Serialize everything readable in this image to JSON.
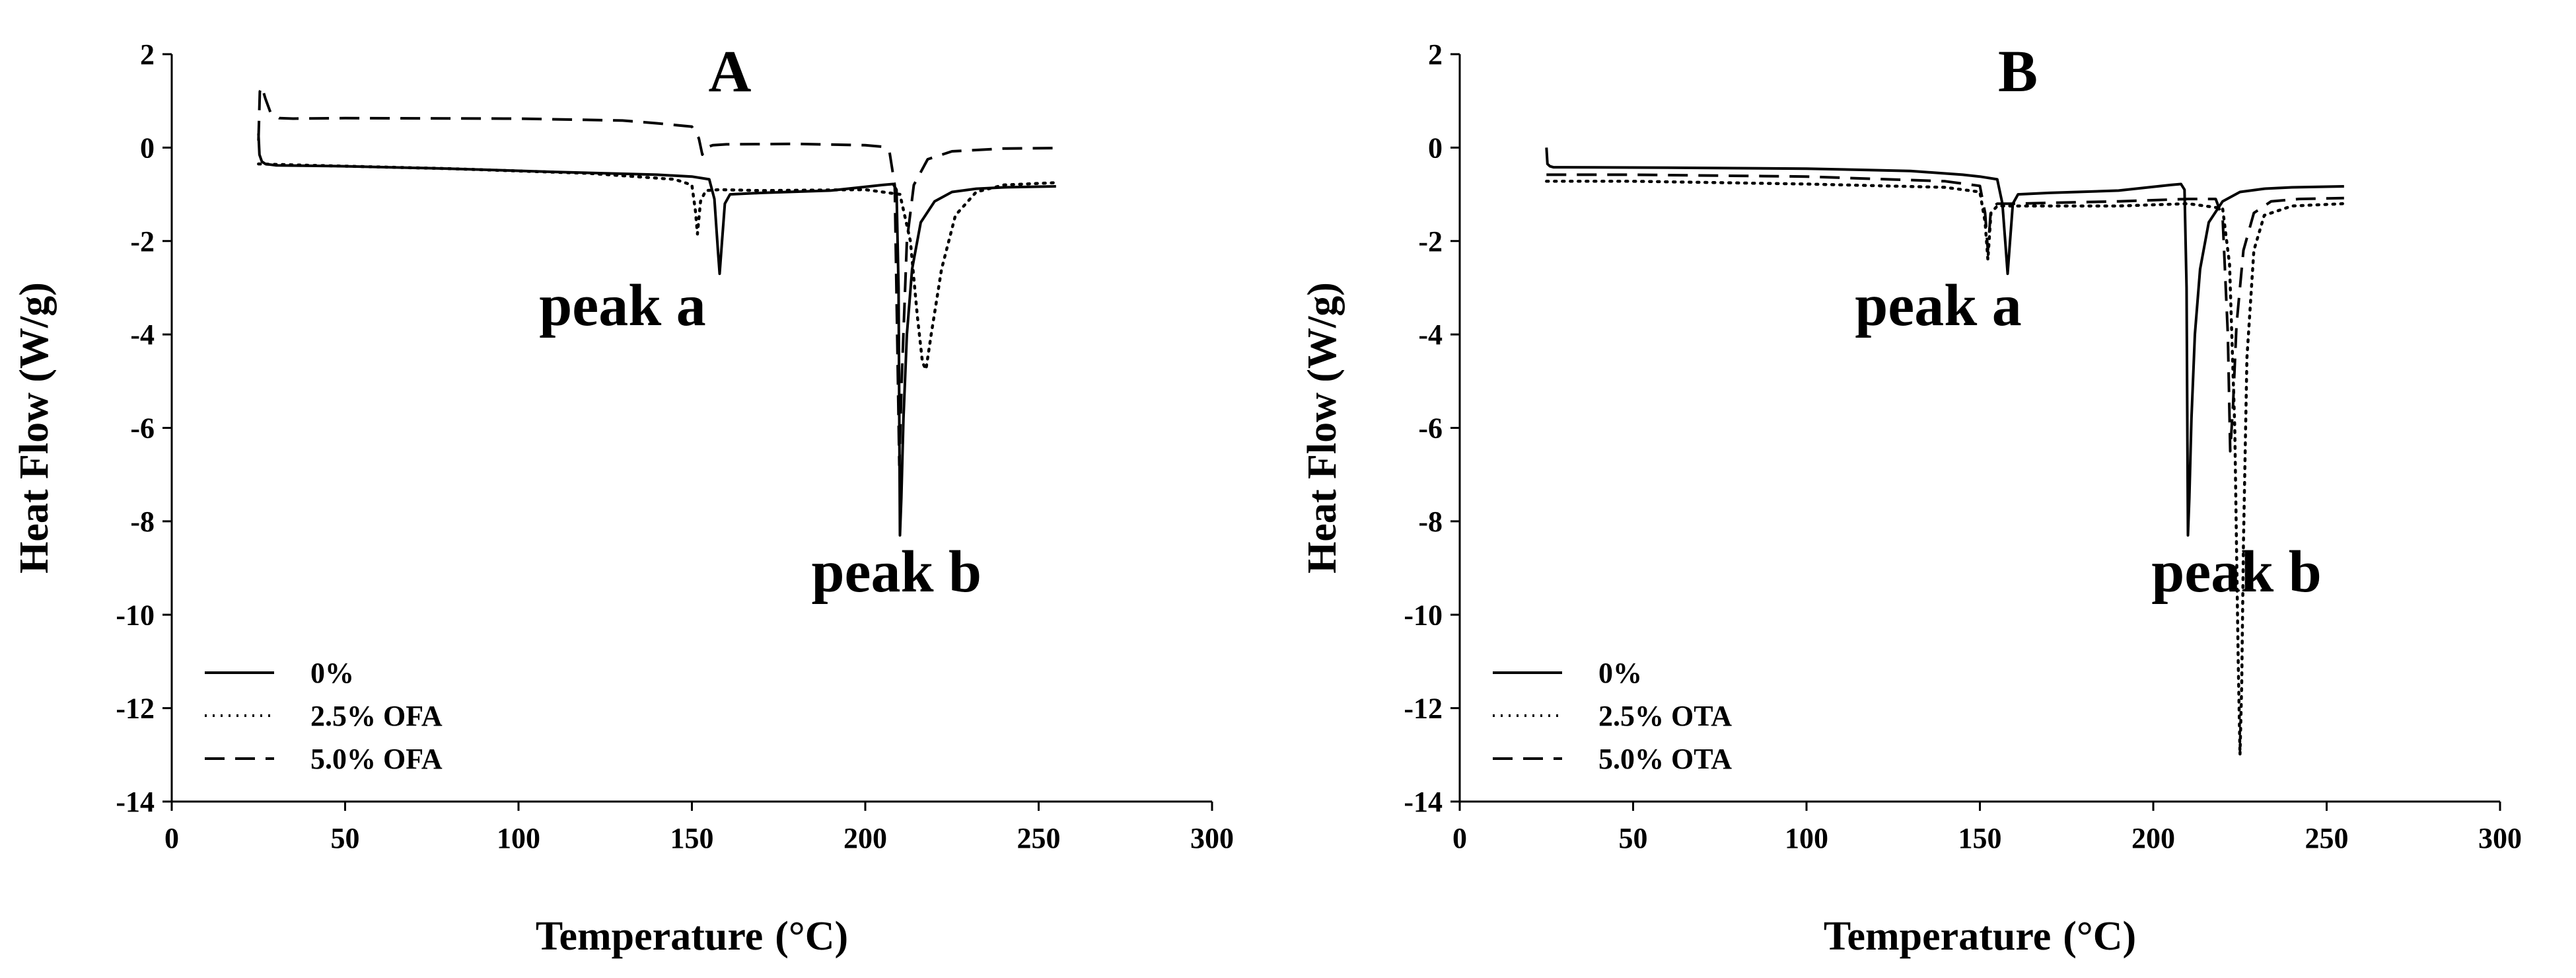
{
  "chart_data": [
    {
      "type": "line",
      "title": "A",
      "xlabel": "Temperature",
      "xlabel_unit": "(°C)",
      "ylabel": "Heat Flow (W/g)",
      "xlim": [
        0,
        300
      ],
      "ylim": [
        -14,
        2
      ],
      "xticks": [
        0,
        50,
        100,
        150,
        200,
        250,
        300
      ],
      "yticks": [
        2,
        0,
        -2,
        -4,
        -6,
        -8,
        -10,
        -12,
        -14
      ],
      "grid": false,
      "legend_position": "bottom-left",
      "annotations": [
        {
          "text": "peak a",
          "x": 130,
          "y": -3.8
        },
        {
          "text": "peak b",
          "x": 209,
          "y": -9.5
        }
      ],
      "series": [
        {
          "name": "0%",
          "style": "solid",
          "x": [
            25,
            25.3,
            26,
            27,
            30,
            50,
            80,
            110,
            140,
            150,
            155,
            156.5,
            157.5,
            158,
            158.5,
            159.5,
            161,
            170,
            190,
            205,
            208,
            209,
            209.6,
            210,
            210.4,
            211,
            212,
            213.5,
            216,
            220,
            225,
            232,
            240,
            255
          ],
          "y": [
            0.3,
            -0.15,
            -0.3,
            -0.35,
            -0.38,
            -0.4,
            -0.45,
            -0.52,
            -0.58,
            -0.62,
            -0.68,
            -1.1,
            -2.2,
            -2.7,
            -2.2,
            -1.2,
            -1.0,
            -0.97,
            -0.92,
            -0.8,
            -0.78,
            -0.9,
            -3.0,
            -8.3,
            -7.5,
            -5.8,
            -4.0,
            -2.6,
            -1.6,
            -1.15,
            -0.95,
            -0.88,
            -0.85,
            -0.83
          ]
        },
        {
          "name": "2.5% OFA",
          "style": "dotted",
          "x": [
            25,
            40,
            80,
            120,
            145,
            150,
            151,
            151.6,
            152.5,
            154,
            158,
            170,
            200,
            210,
            213,
            215,
            216.5,
            217.5,
            219,
            222,
            226,
            232,
            240,
            255
          ],
          "y": [
            -0.35,
            -0.38,
            -0.45,
            -0.55,
            -0.68,
            -0.8,
            -1.35,
            -1.85,
            -1.15,
            -0.92,
            -0.9,
            -0.92,
            -0.9,
            -1.0,
            -2.0,
            -3.6,
            -4.6,
            -4.75,
            -4.0,
            -2.6,
            -1.45,
            -0.95,
            -0.8,
            -0.75
          ]
        },
        {
          "name": "5.0% OFA",
          "style": "dashed",
          "x": [
            25,
            25.4,
            26,
            27,
            28.5,
            31,
            35,
            50,
            100,
            130,
            140,
            150,
            152,
            153,
            154,
            156,
            160,
            180,
            200,
            205,
            207,
            208.5,
            209.2,
            209.8,
            210.5,
            212,
            214,
            218,
            225,
            240,
            255
          ],
          "y": [
            0.15,
            1.2,
            1.3,
            1.05,
            0.75,
            0.63,
            0.62,
            0.63,
            0.62,
            0.58,
            0.52,
            0.45,
            0.2,
            -0.15,
            0.0,
            0.05,
            0.07,
            0.08,
            0.05,
            0.02,
            -0.1,
            -0.8,
            -4.0,
            -6.8,
            -5.0,
            -2.0,
            -0.8,
            -0.25,
            -0.08,
            -0.02,
            -0.01
          ]
        }
      ]
    },
    {
      "type": "line",
      "title": "B",
      "xlabel": "Temperature",
      "xlabel_unit": "(°C)",
      "ylabel": "Heat Flow (W/g)",
      "xlim": [
        0,
        300
      ],
      "ylim": [
        -14,
        2
      ],
      "xticks": [
        0,
        50,
        100,
        150,
        200,
        250,
        300
      ],
      "yticks": [
        2,
        0,
        -2,
        -4,
        -6,
        -8,
        -10,
        -12,
        -14
      ],
      "grid": false,
      "legend_position": "bottom-left",
      "annotations": [
        {
          "text": "peak a",
          "x": 138,
          "y": -3.8
        },
        {
          "text": "peak b",
          "x": 224,
          "y": -9.5
        }
      ],
      "series": [
        {
          "name": "0%",
          "style": "solid",
          "x": [
            25,
            25.3,
            26,
            27,
            30,
            60,
            100,
            130,
            145,
            150,
            155,
            156.5,
            157.5,
            158,
            158.5,
            159.5,
            161,
            170,
            190,
            205,
            208,
            209,
            209.6,
            210,
            210.4,
            211,
            212,
            213.5,
            216,
            220,
            225,
            232,
            240,
            255
          ],
          "y": [
            0.0,
            -0.35,
            -0.4,
            -0.42,
            -0.42,
            -0.43,
            -0.45,
            -0.5,
            -0.58,
            -0.62,
            -0.68,
            -1.2,
            -2.2,
            -2.7,
            -2.2,
            -1.2,
            -1.0,
            -0.97,
            -0.92,
            -0.8,
            -0.78,
            -0.9,
            -3.0,
            -8.3,
            -7.5,
            -5.8,
            -4.0,
            -2.6,
            -1.6,
            -1.15,
            -0.95,
            -0.88,
            -0.85,
            -0.83
          ]
        },
        {
          "name": "2.5% OTA",
          "style": "dotted",
          "x": [
            25,
            50,
            100,
            140,
            150,
            151.5,
            152.3,
            153.2,
            155,
            160,
            190,
            210,
            220,
            222,
            223.5,
            224.5,
            225,
            225.5,
            226,
            227,
            229,
            232,
            240,
            255
          ],
          "y": [
            -0.72,
            -0.72,
            -0.78,
            -0.85,
            -0.95,
            -1.6,
            -2.4,
            -1.4,
            -1.25,
            -1.25,
            -1.25,
            -1.2,
            -1.3,
            -2.5,
            -6.0,
            -11.0,
            -13.0,
            -11.5,
            -8.5,
            -4.5,
            -2.2,
            -1.45,
            -1.25,
            -1.2
          ]
        },
        {
          "name": "5.0% OTA",
          "style": "dashed",
          "x": [
            25,
            50,
            100,
            140,
            150,
            151.5,
            152.3,
            153.2,
            155,
            160,
            190,
            210,
            218,
            220,
            221.5,
            222.2,
            223,
            224,
            226,
            229,
            234,
            242,
            255
          ],
          "y": [
            -0.58,
            -0.58,
            -0.62,
            -0.72,
            -0.82,
            -1.4,
            -2.2,
            -1.3,
            -1.2,
            -1.2,
            -1.15,
            -1.1,
            -1.1,
            -1.5,
            -4.0,
            -6.5,
            -5.5,
            -3.8,
            -2.2,
            -1.4,
            -1.15,
            -1.1,
            -1.08
          ]
        }
      ]
    }
  ]
}
